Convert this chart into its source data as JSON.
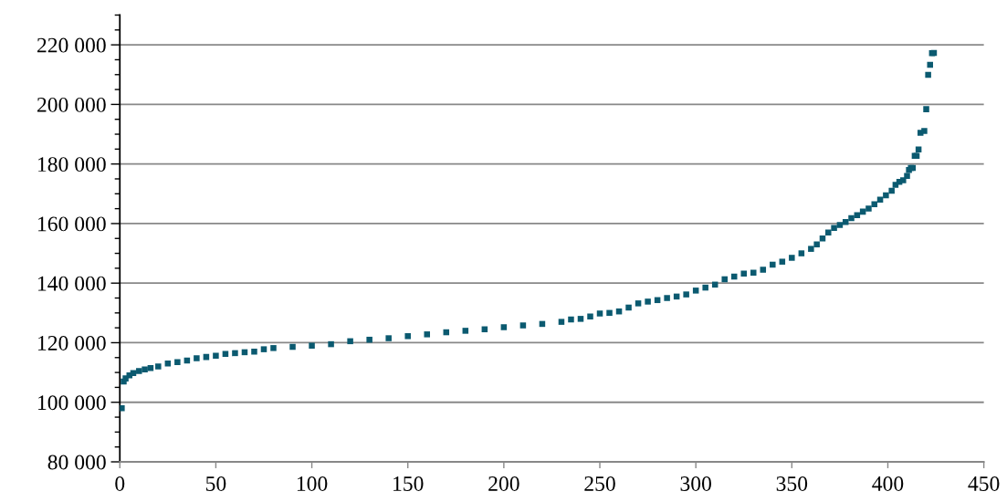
{
  "chart_data": {
    "type": "scatter",
    "marker": "square",
    "grid": "y",
    "xlim": [
      0,
      450
    ],
    "xticks": [
      0,
      50,
      100,
      150,
      200,
      250,
      300,
      350,
      400,
      450
    ],
    "ylim": [
      80000,
      230000
    ],
    "yticks": [
      {
        "value": 80000,
        "label": "80 000"
      },
      {
        "value": 100000,
        "label": "100 000"
      },
      {
        "value": 120000,
        "label": "120 000"
      },
      {
        "value": 140000,
        "label": "140 000"
      },
      {
        "value": 160000,
        "label": "160 000"
      },
      {
        "value": 180000,
        "label": "180 000"
      },
      {
        "value": 200000,
        "label": "200 000"
      },
      {
        "value": 220000,
        "label": "220 000"
      }
    ],
    "series": [
      {
        "color": "#0b5a70",
        "x": [
          1,
          2,
          3,
          5,
          7,
          10,
          13,
          16,
          20,
          25,
          30,
          35,
          40,
          45,
          50,
          55,
          60,
          65,
          70,
          75,
          80,
          90,
          100,
          110,
          120,
          130,
          140,
          150,
          160,
          170,
          180,
          190,
          200,
          210,
          220,
          230,
          235,
          240,
          245,
          250,
          255,
          260,
          265,
          270,
          275,
          280,
          285,
          290,
          295,
          300,
          305,
          310,
          315,
          320,
          325,
          330,
          335,
          340,
          345,
          350,
          355,
          360,
          363,
          366,
          369,
          372,
          375,
          378,
          381,
          384,
          387,
          390,
          393,
          396,
          399,
          402,
          404,
          406,
          408,
          410,
          411,
          412,
          413,
          414,
          415,
          416,
          417,
          419,
          420,
          421,
          422,
          423,
          424
        ],
        "values": [
          98000,
          107000,
          108000,
          109000,
          109800,
          110500,
          111000,
          111500,
          112000,
          113000,
          113500,
          114000,
          114800,
          115200,
          115600,
          116200,
          116500,
          116800,
          117000,
          117800,
          118200,
          118600,
          119000,
          119500,
          120500,
          121000,
          121500,
          122200,
          122800,
          123500,
          124000,
          124500,
          125200,
          125800,
          126300,
          127000,
          127800,
          128000,
          128800,
          129800,
          130000,
          130500,
          131800,
          133200,
          133800,
          134300,
          135000,
          135500,
          136200,
          137500,
          138500,
          139500,
          141300,
          142200,
          143200,
          143500,
          144500,
          146200,
          147200,
          148500,
          150000,
          151500,
          153000,
          155000,
          157000,
          158500,
          159500,
          160500,
          161800,
          162800,
          164000,
          165000,
          166500,
          168000,
          169500,
          171000,
          173000,
          174000,
          174500,
          176000,
          178000,
          178700,
          178700,
          182700,
          182700,
          184900,
          190500,
          191100,
          198400,
          209900,
          213300,
          217200,
          217300
        ]
      }
    ]
  }
}
